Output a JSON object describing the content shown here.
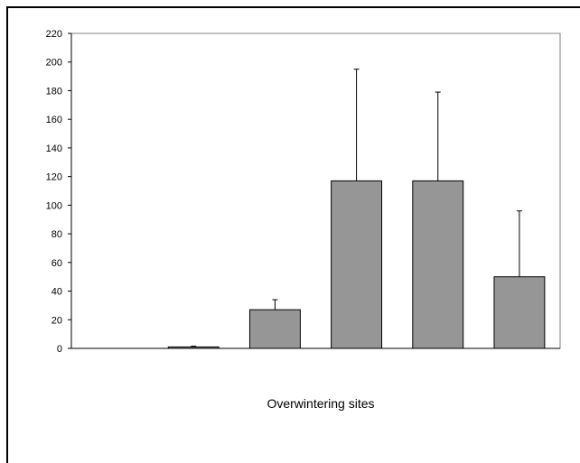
{
  "chart_data": {
    "type": "bar",
    "title": "",
    "xlabel": "Overwintering sites",
    "ylabel": "",
    "ylim": [
      0,
      220
    ],
    "y_ticks": [
      0,
      20,
      40,
      60,
      80,
      100,
      120,
      140,
      160,
      180,
      200,
      220
    ],
    "grid": false,
    "legend": "none",
    "categories": [
      "",
      "",
      "",
      "",
      "",
      ""
    ],
    "values": [
      0,
      1,
      27,
      117,
      117,
      50
    ],
    "error_bars": [
      0,
      0.5,
      7,
      78,
      62,
      46
    ],
    "bar_color": "#969696",
    "bar_outline": "#000000"
  }
}
